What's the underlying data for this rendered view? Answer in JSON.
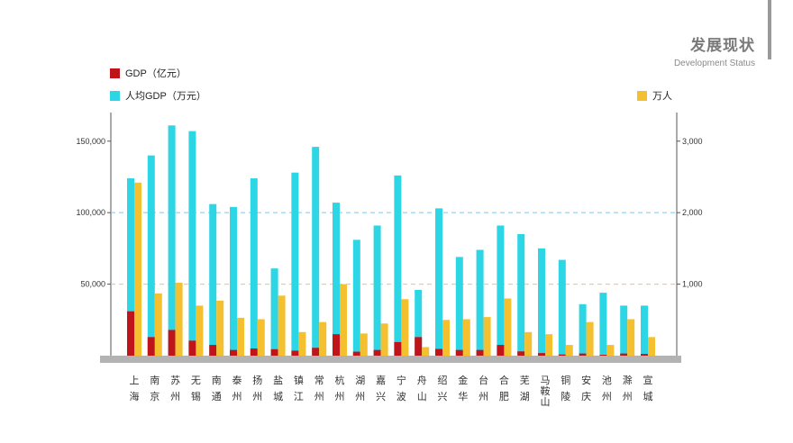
{
  "header": {
    "title": "发展现状",
    "subtitle": "Development Status"
  },
  "legend": [
    {
      "label": "GDP（亿元）",
      "color": "#c0141b"
    },
    {
      "label": "人均GDP（万元）",
      "color": "#2dd6e4"
    },
    {
      "label": "万人",
      "color": "#f5c02f"
    }
  ],
  "chart_data": {
    "type": "bar",
    "categories": [
      [
        "上",
        "海"
      ],
      [
        "南",
        "京"
      ],
      [
        "苏",
        "州"
      ],
      [
        "无",
        "锡"
      ],
      [
        "南",
        "通"
      ],
      [
        "泰",
        "州"
      ],
      [
        "扬",
        "州"
      ],
      [
        "盐",
        "城"
      ],
      [
        "镇",
        "江"
      ],
      [
        "常",
        "州"
      ],
      [
        "杭",
        "州"
      ],
      [
        "湖",
        "州"
      ],
      [
        "嘉",
        "兴"
      ],
      [
        "宁",
        "波"
      ],
      [
        "舟",
        "山"
      ],
      [
        "绍",
        "兴"
      ],
      [
        "金",
        "华"
      ],
      [
        "台",
        "州"
      ],
      [
        "合",
        "肥"
      ],
      [
        "芜",
        "湖"
      ],
      [
        "马",
        "鞍",
        "山"
      ],
      [
        "铜",
        "陵"
      ],
      [
        "安",
        "庆"
      ],
      [
        "池",
        "州"
      ],
      [
        "滁",
        "州"
      ],
      [
        "宣",
        "城"
      ]
    ],
    "left_axis": {
      "ylim": [
        0,
        170000
      ],
      "ticks": [
        "150,000",
        "100,000",
        "50,000"
      ],
      "tick_values": [
        150000,
        100000,
        50000
      ]
    },
    "right_axis": {
      "ylim": [
        0,
        3400
      ],
      "ticks": [
        "3,000",
        "2,000",
        "1,000"
      ],
      "tick_values": [
        3000,
        2000,
        1000
      ]
    },
    "reference_lines": [
      {
        "axis": "left",
        "value": 100000,
        "color": "#7fc7ea"
      },
      {
        "axis": "right",
        "value": 1000,
        "color": "#f0c659"
      }
    ],
    "series": [
      {
        "name": "人均GDP（万元）",
        "axis": "left",
        "color": "#2dd6e4",
        "values": [
          124000,
          140000,
          161000,
          157000,
          106000,
          104000,
          124000,
          61000,
          128000,
          146000,
          107000,
          81000,
          91000,
          126000,
          46000,
          103000,
          69000,
          74000,
          91000,
          85000,
          75000,
          67000,
          36000,
          44000,
          35000,
          35000
        ]
      },
      {
        "name": "GDP（亿元）",
        "axis": "left",
        "color": "#c0141b",
        "values": [
          31000,
          13000,
          18000,
          10500,
          7500,
          4000,
          5000,
          4500,
          3500,
          5500,
          15000,
          2800,
          4000,
          9500,
          13000,
          4700,
          4000,
          4000,
          7500,
          3000,
          1800,
          800,
          1500,
          600,
          1500,
          1200
        ]
      },
      {
        "name": "万人",
        "axis": "right",
        "color": "#f5c02f",
        "values": [
          2420,
          870,
          1020,
          700,
          770,
          530,
          510,
          840,
          330,
          470,
          1000,
          310,
          450,
          790,
          120,
          500,
          510,
          540,
          800,
          330,
          300,
          150,
          470,
          150,
          510,
          260
        ]
      }
    ]
  }
}
